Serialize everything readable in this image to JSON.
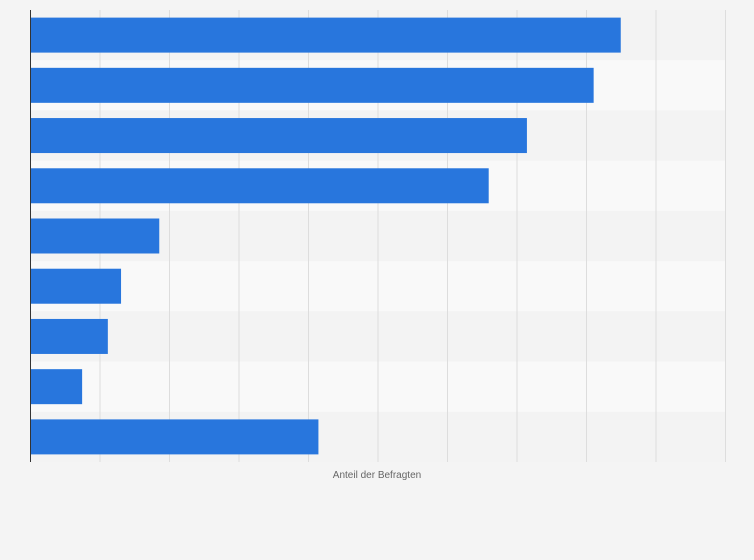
{
  "chart_data": {
    "type": "bar",
    "orientation": "horizontal",
    "categories": [
      "",
      "",
      "",
      "",
      "",
      "",
      "",
      "",
      ""
    ],
    "values": [
      85,
      81.1,
      71.5,
      66,
      18.6,
      13.1,
      11.2,
      7.5,
      41.5
    ],
    "xlabel": "Anteil der Befragten",
    "ylabel": "",
    "xlim": [
      0,
      100
    ],
    "grid": true,
    "legend": "none",
    "colors": {
      "bar": "#2876dd",
      "background": "#f4f4f4",
      "band_light": "#f9f9f9",
      "band_dark": "#f3f3f3",
      "grid": "#dddddd",
      "axis": "#333333"
    }
  }
}
